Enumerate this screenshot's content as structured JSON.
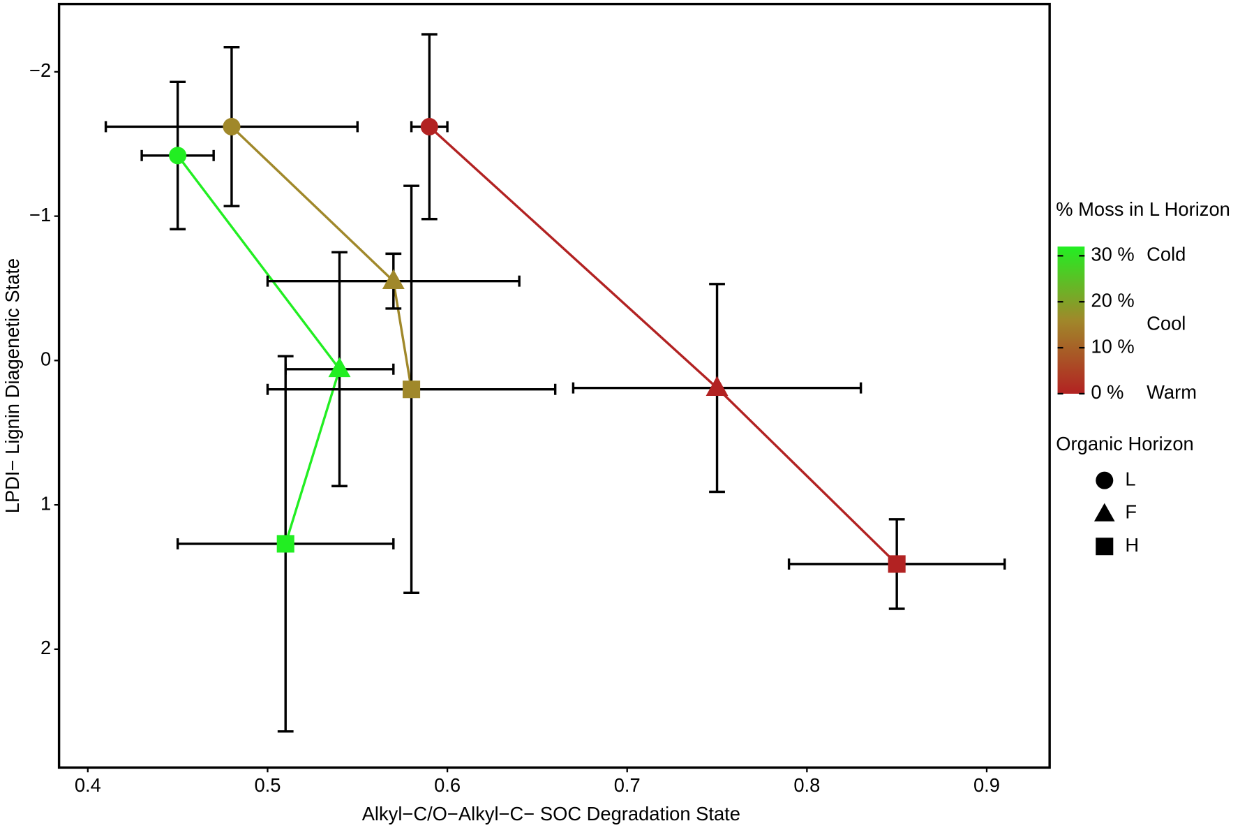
{
  "chart_data": {
    "type": "scatter",
    "x_label": "Alkyl−C/O−Alkyl−C− SOC Degradation State",
    "y_label": "LPDI− Lignin Diagenetic State",
    "xlim": [
      0.384,
      0.935
    ],
    "xticks": [
      0.4,
      0.5,
      0.6,
      0.7,
      0.8,
      0.9
    ],
    "ylim": [
      2.82,
      -2.47
    ],
    "yticks": [
      {
        "value": -2,
        "label": "−2"
      },
      {
        "value": -1,
        "label": "−1"
      },
      0,
      1,
      2
    ],
    "series": [
      {
        "name": "Cold",
        "color": "#22ee22",
        "moss": 30,
        "x": [
          0.45,
          0.54,
          0.51
        ],
        "values": [
          -1.42,
          0.06,
          1.27
        ],
        "xerr": [
          0.02,
          0.03,
          0.06
        ],
        "yerr": [
          0.51,
          0.81,
          1.3
        ]
      },
      {
        "name": "Cool",
        "color": "#a0882a",
        "moss": 15,
        "x": [
          0.48,
          0.57,
          0.58
        ],
        "values": [
          -1.62,
          -0.55,
          0.2
        ],
        "xerr": [
          0.07,
          0.07,
          0.08
        ],
        "yerr": [
          0.55,
          0.19,
          1.41
        ]
      },
      {
        "name": "Warm",
        "color": "#b22222",
        "moss": 0,
        "x": [
          0.59,
          0.75,
          0.85
        ],
        "values": [
          -1.62,
          0.19,
          1.41
        ],
        "xerr": [
          0.01,
          0.08,
          0.06
        ],
        "yerr": [
          0.64,
          0.72,
          0.31
        ]
      }
    ],
    "colorbar": {
      "title": "% Moss in L Horizon",
      "lim": [
        0,
        32
      ],
      "colors": [
        "#b22222",
        "#a0882a",
        "#22ee22"
      ],
      "ticks": [
        {
          "value": 30,
          "label": "30 %"
        },
        {
          "value": 20,
          "label": "20 %"
        },
        {
          "value": 10,
          "label": "10 %"
        },
        {
          "value": 0,
          "label": "0 %"
        }
      ]
    },
    "shape_legend": {
      "title": "Organic Horizon",
      "entries": [
        "L",
        "F",
        "H"
      ]
    }
  }
}
